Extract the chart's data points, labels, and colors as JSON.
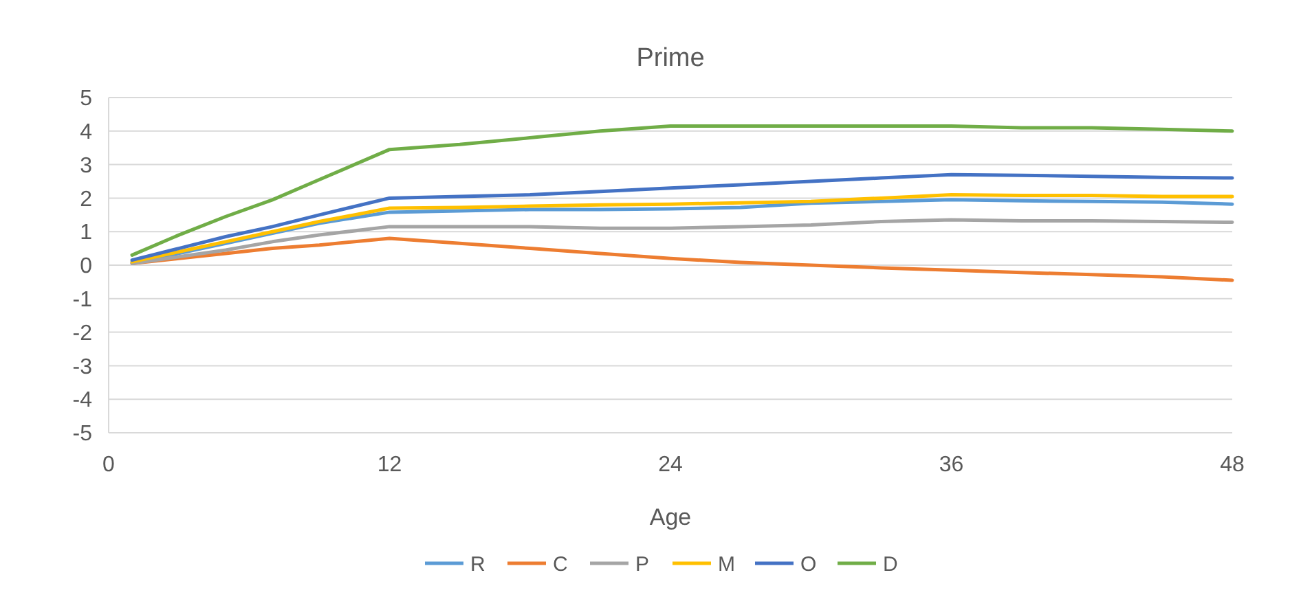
{
  "chart_data": {
    "type": "line",
    "title": "Prime",
    "xlabel": "Age",
    "x": [
      1,
      3,
      5,
      7,
      9,
      12,
      15,
      18,
      21,
      24,
      27,
      30,
      33,
      36,
      39,
      42,
      45,
      48
    ],
    "xlim": [
      0,
      48
    ],
    "xticks": [
      0,
      12,
      24,
      36,
      48
    ],
    "ylim": [
      -5,
      5
    ],
    "yticks": [
      -5,
      -4,
      -3,
      -2,
      -1,
      0,
      1,
      2,
      3,
      4,
      5
    ],
    "grid": "y",
    "legend": "bottom",
    "marker": "none",
    "line_style": "solid",
    "series": [
      {
        "name": "R",
        "color": "#5b9bd5",
        "values": [
          0.08,
          0.35,
          0.65,
          0.95,
          1.25,
          1.58,
          1.62,
          1.66,
          1.66,
          1.68,
          1.72,
          1.85,
          1.9,
          1.95,
          1.92,
          1.9,
          1.88,
          1.82
        ]
      },
      {
        "name": "C",
        "color": "#ed7d31",
        "values": [
          0.05,
          0.2,
          0.35,
          0.5,
          0.6,
          0.8,
          0.65,
          0.5,
          0.35,
          0.2,
          0.08,
          0.0,
          -0.08,
          -0.15,
          -0.22,
          -0.28,
          -0.35,
          -0.45
        ]
      },
      {
        "name": "P",
        "color": "#a5a5a5",
        "values": [
          0.05,
          0.25,
          0.45,
          0.7,
          0.9,
          1.15,
          1.15,
          1.15,
          1.1,
          1.1,
          1.15,
          1.2,
          1.3,
          1.35,
          1.32,
          1.32,
          1.3,
          1.28
        ]
      },
      {
        "name": "M",
        "color": "#ffc000",
        "values": [
          0.1,
          0.4,
          0.7,
          1.0,
          1.3,
          1.7,
          1.72,
          1.76,
          1.8,
          1.82,
          1.86,
          1.9,
          2.0,
          2.1,
          2.08,
          2.08,
          2.05,
          2.05
        ]
      },
      {
        "name": "O",
        "color": "#4472c4",
        "values": [
          0.15,
          0.5,
          0.85,
          1.15,
          1.5,
          2.0,
          2.05,
          2.1,
          2.2,
          2.3,
          2.4,
          2.5,
          2.6,
          2.7,
          2.68,
          2.65,
          2.62,
          2.6
        ]
      },
      {
        "name": "D",
        "color": "#70ad47",
        "values": [
          0.3,
          0.9,
          1.45,
          1.95,
          2.55,
          3.45,
          3.6,
          3.8,
          4.0,
          4.15,
          4.15,
          4.15,
          4.15,
          4.15,
          4.1,
          4.1,
          4.05,
          4.0
        ]
      }
    ]
  }
}
